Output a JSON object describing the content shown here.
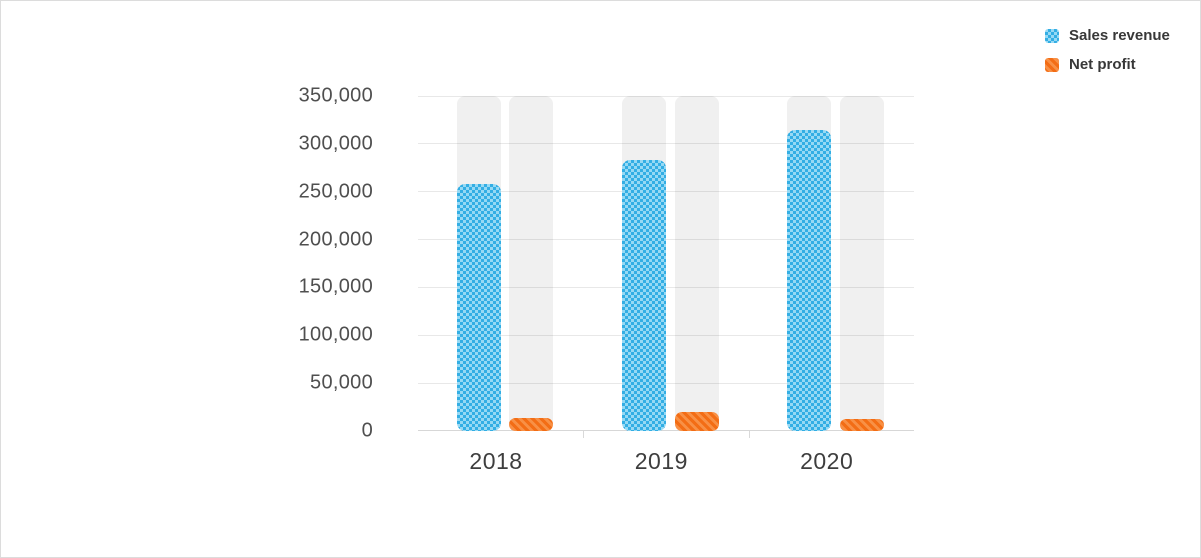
{
  "page": {
    "background": "#ffffff",
    "border_color": "#dcdcdc"
  },
  "legend": {
    "position": "top-right",
    "items": [
      {
        "label": "Sales revenue",
        "swatch": "blue-checkerboard",
        "color": "#3bb3e7"
      },
      {
        "label": "Net profit",
        "swatch": "orange-diagonal-stripes",
        "color": "#f2711c"
      }
    ]
  },
  "chart_data": {
    "type": "bar",
    "title": "",
    "xlabel": "",
    "ylabel": "",
    "categories": [
      "2018",
      "2019",
      "2020"
    ],
    "series": [
      {
        "name": "Sales revenue",
        "values": [
          258000,
          283000,
          315000
        ],
        "color": "#3bb3e7",
        "pattern": "checkerboard"
      },
      {
        "name": "Net profit",
        "values": [
          14000,
          19500,
          12500
        ],
        "color": "#f2711c",
        "pattern": "diagonal-stripes"
      }
    ],
    "ylim": [
      0,
      350000
    ],
    "ytick_step": 50000,
    "ytick_labels": [
      "0",
      "50,000",
      "100,000",
      "150,000",
      "200,000",
      "250,000",
      "300,000",
      "350,000"
    ],
    "grid": true,
    "track_bars_to_max": true,
    "legend_position": "top-right",
    "colors": {
      "grid": "#e8e8e8",
      "axis_line": "#d7d7d7",
      "track": "#ededed",
      "blue_dark": "#33aee4",
      "blue_light": "#96d9f4",
      "orange_dark": "#f36d15",
      "orange_light": "#f89045",
      "ylabel_text": "#4f4f4f",
      "xlabel_text": "#3e3e3e",
      "legend_text": "#383838"
    }
  }
}
